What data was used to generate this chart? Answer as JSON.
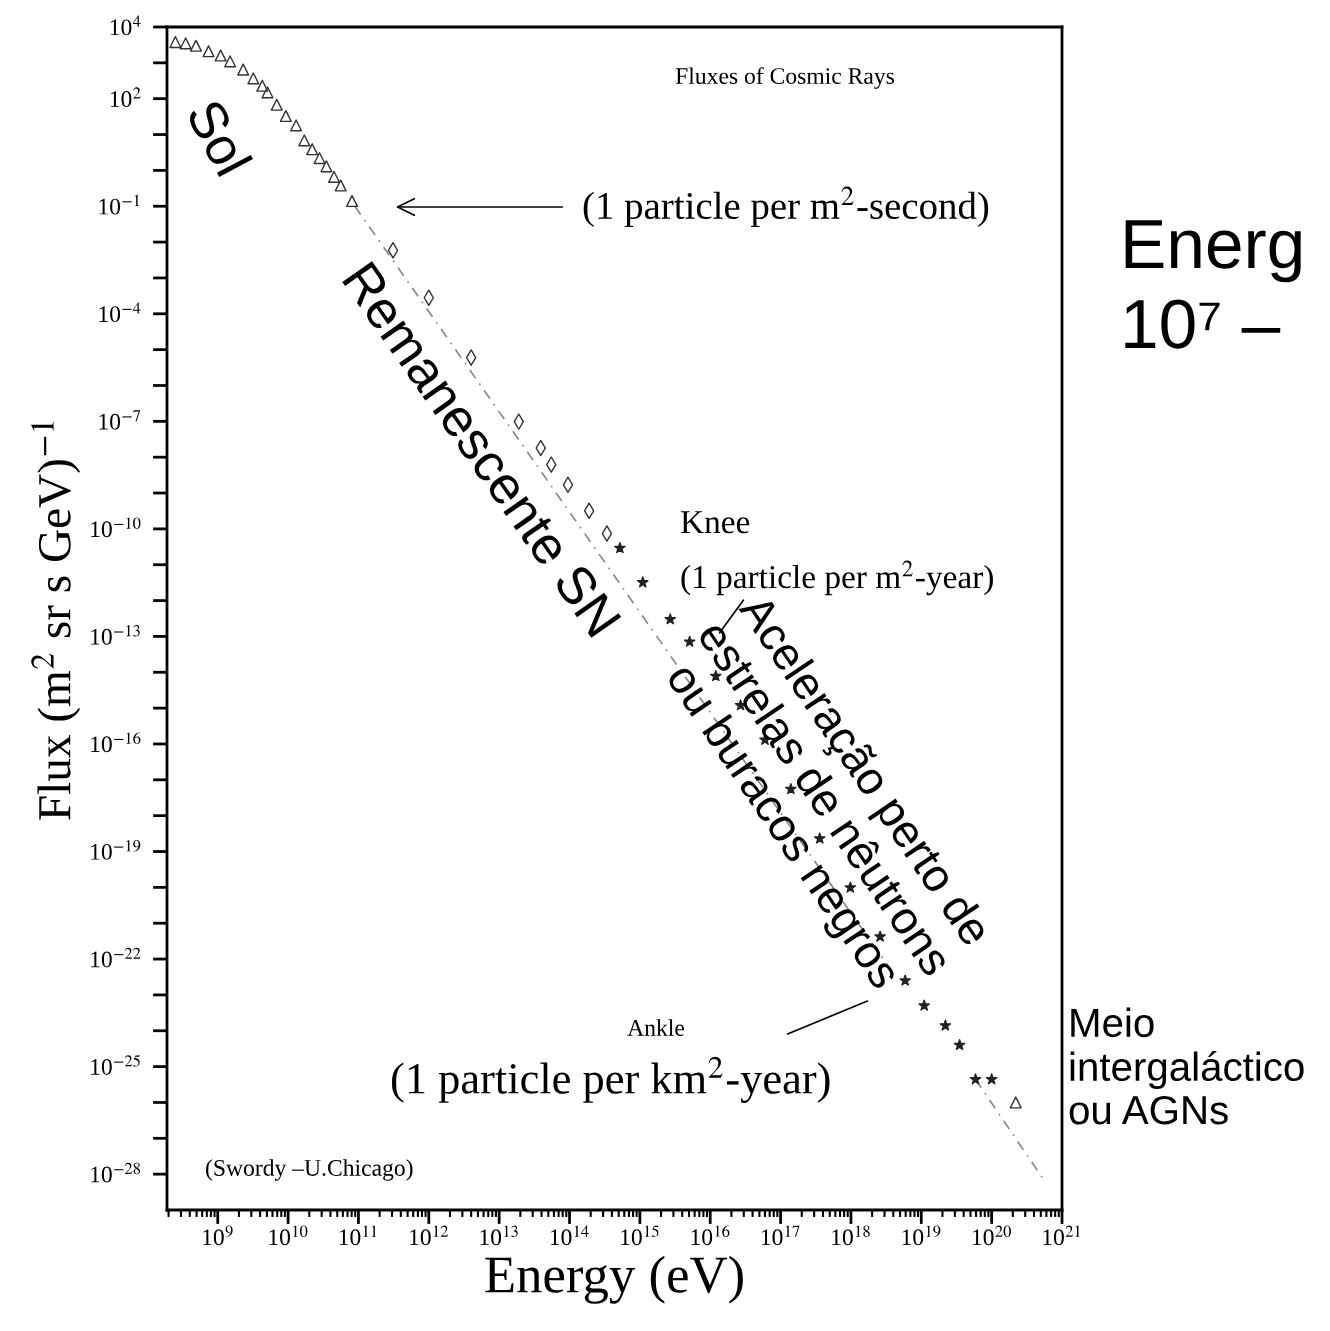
{
  "chart_data": {
    "type": "scatter",
    "xlabel": "Energy (eV)",
    "ylabel": "Flux (m$^{2}$ sr s GeV)$^{−1}$",
    "log": "xy",
    "xlim": [
      190000000.0,
      1e+21
    ],
    "ylim": [
      1e-29,
      10000.0
    ],
    "xticks": [
      {
        "value": 1000000000.0,
        "label": "10$^{9}$"
      },
      {
        "value": 10000000000.0,
        "label": "10$^{10}$"
      },
      {
        "value": 100000000000.0,
        "label": "10$^{11}$"
      },
      {
        "value": 1000000000000.0,
        "label": "10$^{12}$"
      },
      {
        "value": 10000000000000.0,
        "label": "10$^{13}$"
      },
      {
        "value": 100000000000000.0,
        "label": "10$^{14}$"
      },
      {
        "value": 1000000000000000.0,
        "label": "10$^{15}$"
      },
      {
        "value": 1e+16,
        "label": "10$^{16}$"
      },
      {
        "value": 1e+17,
        "label": "10$^{17}$"
      },
      {
        "value": 1e+18,
        "label": "10$^{18}$"
      },
      {
        "value": 1e+19,
        "label": "10$^{19}$"
      },
      {
        "value": 1e+20,
        "label": "10$^{20}$"
      },
      {
        "value": 1e+21,
        "label": "10$^{21}$"
      }
    ],
    "yticks": [
      {
        "value": 10000.0,
        "label": "10$^{4}$"
      },
      {
        "value": 1000.0,
        "label": null
      },
      {
        "value": 100.0,
        "label": "10$^{2}$"
      },
      {
        "value": 10.0,
        "label": null
      },
      {
        "value": 1,
        "label": null
      },
      {
        "value": 0.1,
        "label": "10$^{−1}$"
      },
      {
        "value": 0.01,
        "label": null
      },
      {
        "value": 0.001,
        "label": null
      },
      {
        "value": 0.0001,
        "label": "10$^{−4}$"
      },
      {
        "value": 1e-05,
        "label": null
      },
      {
        "value": 1e-06,
        "label": null
      },
      {
        "value": 1e-07,
        "label": "10$^{−7}$"
      },
      {
        "value": 1e-08,
        "label": null
      },
      {
        "value": 1e-09,
        "label": null
      },
      {
        "value": 1e-10,
        "label": "10$^{−10}$"
      },
      {
        "value": 1e-11,
        "label": null
      },
      {
        "value": 1e-12,
        "label": null
      },
      {
        "value": 1e-13,
        "label": "10$^{−13}$"
      },
      {
        "value": 1e-14,
        "label": null
      },
      {
        "value": 1e-15,
        "label": null
      },
      {
        "value": 1e-16,
        "label": "10$^{−16}$"
      },
      {
        "value": 1e-17,
        "label": null
      },
      {
        "value": 1e-18,
        "label": null
      },
      {
        "value": 1e-19,
        "label": "10$^{−19}$"
      },
      {
        "value": 1e-20,
        "label": null
      },
      {
        "value": 1e-21,
        "label": null
      },
      {
        "value": 1e-22,
        "label": "10$^{−22}$"
      },
      {
        "value": 1e-23,
        "label": null
      },
      {
        "value": 1e-24,
        "label": null
      },
      {
        "value": 1e-25,
        "label": "10$^{−25}$"
      },
      {
        "value": 1e-26,
        "label": null
      },
      {
        "value": 1e-27,
        "label": null
      },
      {
        "value": 1e-28,
        "label": "10$^{−28}$"
      }
    ],
    "grid": false,
    "legend": false,
    "series": [
      {
        "marker": "triangle",
        "color": "#333333",
        "x": [
          250000000.0,
          350000000.0,
          490000000.0,
          740000000.0,
          1100000000.0,
          1500000000.0,
          2300000000.0,
          3200000000.0,
          4300000000.0,
          5100000000.0,
          6900000000.0,
          9300000000.0,
          13000000000.0,
          17000000000.0,
          22000000000.0,
          28000000000.0,
          35000000000.0,
          45000000000.0,
          56000000000.0,
          81000000000.0,
          2.2e+20
        ],
        "values": [
          3800,
          3500,
          3000,
          2100,
          1600,
          1100,
          650,
          370,
          230,
          150,
          68,
          33,
          18,
          6.9,
          3.9,
          2.2,
          1.3,
          0.66,
          0.38,
          0.14,
          1e-26
        ]
      },
      {
        "marker": "diamond",
        "color": "#333333",
        "x": [
          310000000000.0,
          1000000000000.0,
          4000000000000.0,
          19000000000000.0,
          39000000000000.0,
          55000000000000.0,
          95000000000000.0,
          190000000000000.0,
          340000000000000.0
        ],
        "values": [
          0.0059,
          0.00028,
          6e-06,
          9.8e-08,
          1.8e-08,
          6.2e-09,
          1.7e-09,
          3.2e-10,
          7.4e-11
        ]
      },
      {
        "marker": "star",
        "color": "#222222",
        "x": [
          520000000000000.0,
          1100000000000000.0,
          2700000000000000.0,
          5100000000000000.0,
          1.2e+16,
          2.7e+16,
          6e+16,
          1.4e+17,
          3.6e+17,
          9.8e+17,
          2.6e+18,
          5.9e+18,
          1.1e+19,
          2.2e+19,
          3.5e+19,
          5.9e+19,
          1e+20
        ],
        "values": [
          2.9e-11,
          3.2e-12,
          3e-13,
          7.1e-14,
          7.8e-15,
          1.2e-15,
          1.3e-16,
          5.5e-18,
          2.3e-19,
          9.8e-21,
          4.2e-22,
          2.5e-23,
          5e-24,
          1.4e-24,
          4e-25,
          4.4e-26,
          4.4e-26
        ]
      },
      {
        "type": "line",
        "marker": "none",
        "line_style": "dashed",
        "color": "#888888",
        "x": [
          89000000000.0,
          4e+18
        ],
        "values": [
          0.1,
          4e-23
        ]
      },
      {
        "type": "line",
        "marker": "none",
        "line_style": "dashed",
        "color": "#888888",
        "x": [
          5.9e+19,
          5.8e+20
        ],
        "values": [
          4.4e-26,
          6e-29
        ]
      }
    ],
    "annotations": [
      "Fluxes of Cosmic Rays",
      "(1 particle per m$^{2}$-second)",
      "Knee",
      "(1 particle per m$^{2}$-year)",
      "Ankle",
      "(1 particle per km$^{2}$-year)",
      "(Swordy –U.Chicago)",
      "Sol",
      "Remanescente SN",
      "Aceleração perto de\nestrelas de nêutrons\nou buracos negros",
      "Meio\nintergaláctico\nou AGNs",
      "Energ",
      "10⁷ –"
    ]
  }
}
